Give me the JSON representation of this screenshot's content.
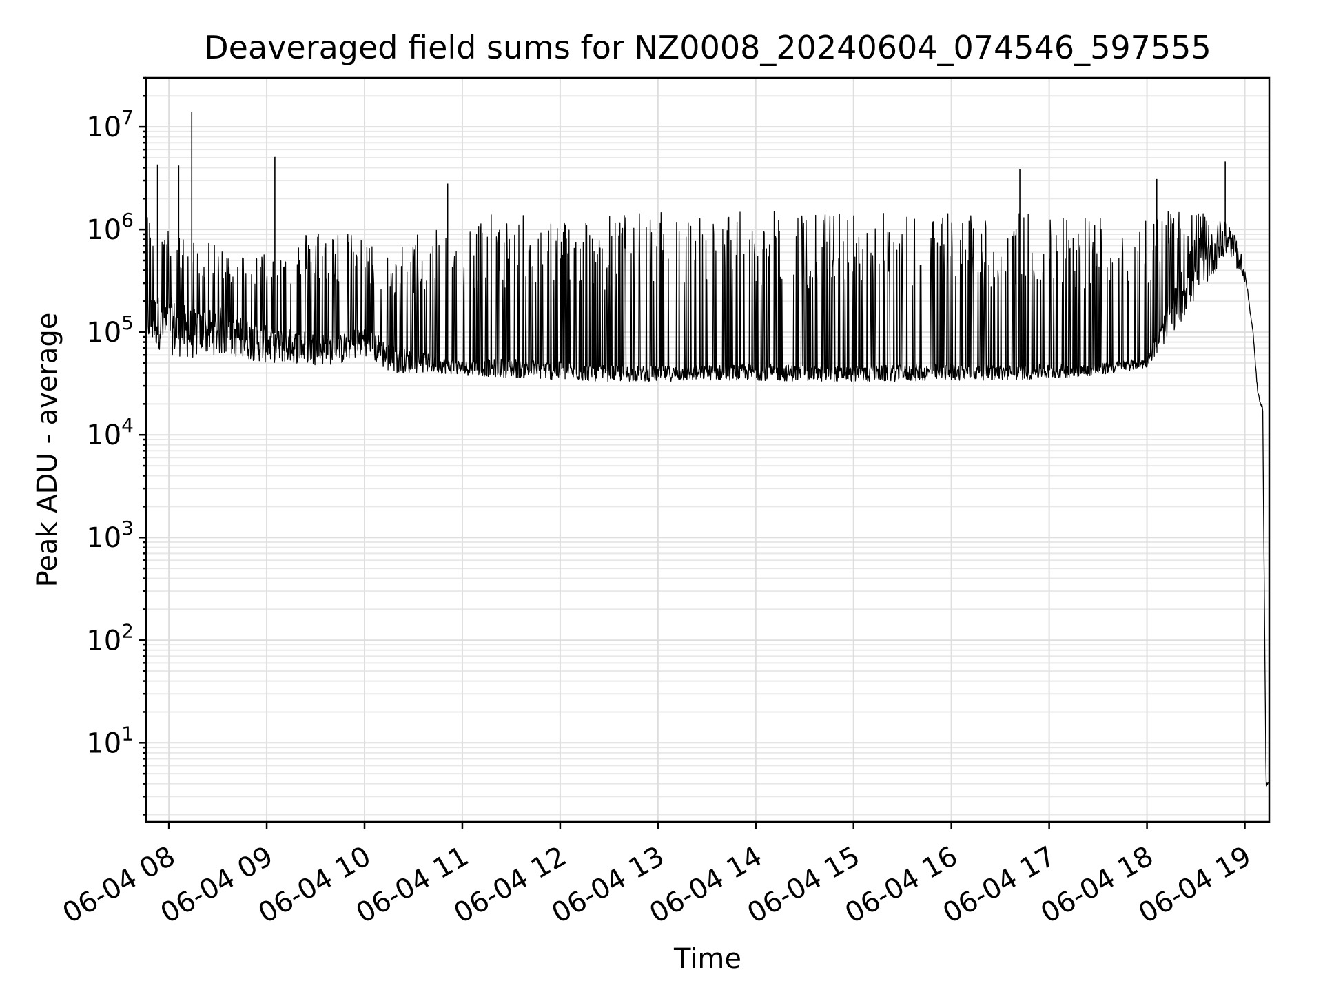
{
  "chart_data": {
    "type": "line",
    "title": "Deaveraged field sums for NZ0008_20240604_074546_597555",
    "xlabel": "Time",
    "ylabel": "Peak ADU - average",
    "yscale": "log",
    "grid": "on (major and minor)",
    "xlim": [
      "06-04 07:46",
      "06-04 19:15"
    ],
    "ylim": [
      1.7,
      30000000
    ],
    "x_ticks": [
      "06-04 08",
      "06-04 09",
      "06-04 10",
      "06-04 11",
      "06-04 12",
      "06-04 13",
      "06-04 14",
      "06-04 15",
      "06-04 16",
      "06-04 17",
      "06-04 18",
      "06-04 19"
    ],
    "y_ticks": [
      {
        "value": 10,
        "base": "10",
        "exp": "1"
      },
      {
        "value": 100,
        "base": "10",
        "exp": "2"
      },
      {
        "value": 1000,
        "base": "10",
        "exp": "3"
      },
      {
        "value": 10000,
        "base": "10",
        "exp": "4"
      },
      {
        "value": 100000,
        "base": "10",
        "exp": "5"
      },
      {
        "value": 1000000,
        "base": "10",
        "exp": "6"
      },
      {
        "value": 10000000,
        "base": "10",
        "exp": "7"
      }
    ],
    "series": [
      {
        "color": "#000000",
        "x": [
          "06-04 07:46",
          "06-04 08:00",
          "06-04 08:15",
          "06-04 08:30",
          "06-04 08:45",
          "06-04 09:00",
          "06-04 09:15",
          "06-04 09:30",
          "06-04 09:45",
          "06-04 10:00",
          "06-04 10:15",
          "06-04 10:30",
          "06-04 10:45",
          "06-04 11:00",
          "06-04 11:30",
          "06-04 12:00",
          "06-04 12:30",
          "06-04 13:00",
          "06-04 13:30",
          "06-04 14:00",
          "06-04 14:30",
          "06-04 15:00",
          "06-04 15:30",
          "06-04 16:00",
          "06-04 16:30",
          "06-04 17:00",
          "06-04 17:30",
          "06-04 18:00",
          "06-04 18:30",
          "06-04 18:50",
          "06-04 19:00",
          "06-04 19:05",
          "06-04 19:08",
          "06-04 19:11",
          "06-04 19:13",
          "06-04 19:15"
        ],
        "y": [
          200000,
          180000,
          140000,
          150000,
          120000,
          100000,
          95000,
          90000,
          85000,
          110000,
          70000,
          60000,
          55000,
          50000,
          52000,
          48000,
          45000,
          44000,
          45000,
          46000,
          45000,
          44000,
          45000,
          46000,
          45000,
          46000,
          47000,
          55000,
          700000,
          900000,
          400000,
          100000,
          25000,
          18000,
          4,
          4
        ],
        "upper_envelope": [
          1500000,
          1000000,
          800000,
          700000,
          600000,
          650000,
          700000,
          1200000,
          1000000,
          800000,
          600000,
          900000,
          1300000,
          1400000,
          1400000,
          1400000,
          1450000,
          1500000,
          1500000,
          1500000,
          1500000,
          1500000,
          1500000,
          1500000,
          1500000,
          1500000,
          1500000,
          1500000,
          1500000,
          1200000,
          500000,
          100000,
          25000,
          18000,
          4,
          4
        ],
        "lower_envelope": [
          80000,
          60000,
          55000,
          60000,
          55000,
          50000,
          50000,
          48000,
          48000,
          60000,
          40000,
          40000,
          40000,
          38000,
          36000,
          34000,
          33000,
          33000,
          34000,
          34000,
          33000,
          33000,
          33000,
          34000,
          34000,
          35000,
          38000,
          45000,
          200000,
          600000,
          300000,
          100000,
          20000,
          17000,
          4,
          4
        ],
        "spikes": [
          {
            "x": "06-04 07:53",
            "y": 4300000
          },
          {
            "x": "06-04 08:06",
            "y": 4200000
          },
          {
            "x": "06-04 08:14",
            "y": 14000000
          },
          {
            "x": "06-04 09:05",
            "y": 5100000
          },
          {
            "x": "06-04 10:51",
            "y": 2800000
          },
          {
            "x": "06-04 16:42",
            "y": 3900000
          },
          {
            "x": "06-04 18:06",
            "y": 3100000
          },
          {
            "x": "06-04 18:48",
            "y": 4600000
          }
        ]
      }
    ]
  }
}
